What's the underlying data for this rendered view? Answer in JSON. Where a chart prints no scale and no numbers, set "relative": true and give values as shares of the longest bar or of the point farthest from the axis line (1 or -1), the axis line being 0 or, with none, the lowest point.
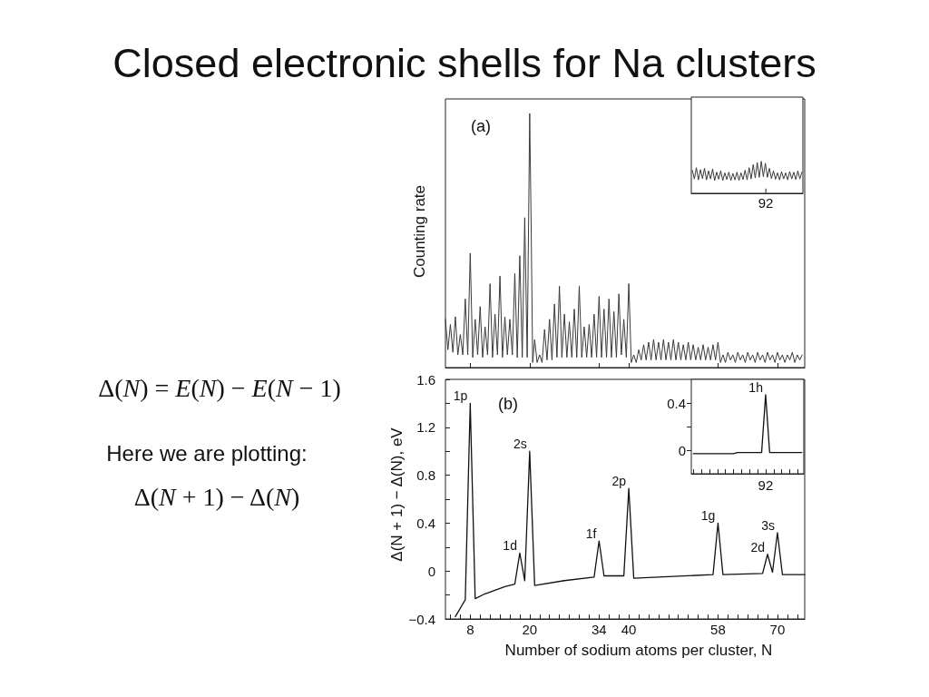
{
  "chart_data": [
    {
      "type": "line",
      "title": "Closed electronic shells for Na clusters",
      "ylabel": "Counting rate",
      "annotations": [
        "(a)"
      ],
      "relative": true,
      "tick_labels": false,
      "xlim": [
        3,
        75.5
      ],
      "xticks": [
        8,
        20,
        34,
        40,
        58,
        70
      ],
      "color": "#3a3a3a",
      "x": [
        3,
        3.5,
        4,
        4.5,
        5,
        5.5,
        6,
        6.5,
        7,
        7.5,
        8,
        8.5,
        9,
        9.5,
        10,
        10.5,
        11,
        11.5,
        12,
        12.5,
        13,
        13.5,
        14,
        14.5,
        15,
        15.5,
        16,
        16.5,
        17,
        17.5,
        18,
        18.5,
        19,
        19.5,
        20,
        20.3,
        20.6,
        21,
        21.5,
        22,
        22.5,
        23,
        23.5,
        24,
        24.5,
        25,
        25.5,
        26,
        26.5,
        27,
        27.5,
        28,
        28.5,
        29,
        29.5,
        30,
        30.5,
        31,
        31.5,
        32,
        32.5,
        33,
        33.5,
        34,
        34.5,
        35,
        35.5,
        36,
        36.5,
        37,
        37.5,
        38,
        38.5,
        39,
        39.5,
        40,
        40.5,
        41,
        41.5,
        42,
        42.5,
        43,
        43.5,
        44,
        44.5,
        45,
        45.5,
        46,
        46.5,
        47,
        47.5,
        48,
        48.5,
        49,
        49.5,
        50,
        50.5,
        51,
        51.5,
        52,
        52.5,
        53,
        53.5,
        54,
        54.5,
        55,
        55.5,
        56,
        56.5,
        57,
        57.5,
        58,
        58.5,
        59,
        59.5,
        60,
        60.5,
        61,
        61.5,
        62,
        62.5,
        63,
        63.5,
        64,
        64.5,
        65,
        65.5,
        66,
        66.5,
        67,
        67.5,
        68,
        68.5,
        69,
        69.5,
        70,
        70.5,
        71,
        71.5,
        72,
        72.5,
        73,
        73.5,
        74,
        74.5,
        75
      ],
      "values": [
        0.19,
        0.07,
        0.17,
        0.06,
        0.2,
        0.05,
        0.13,
        0.05,
        0.27,
        0.05,
        0.45,
        0.04,
        0.19,
        0.05,
        0.24,
        0.04,
        0.16,
        0.05,
        0.33,
        0.04,
        0.21,
        0.05,
        0.36,
        0.04,
        0.2,
        0.05,
        0.19,
        0.05,
        0.37,
        0.04,
        0.44,
        0.04,
        0.59,
        0.04,
        1.0,
        0.55,
        0.02,
        0.11,
        0.02,
        0.05,
        0.02,
        0.15,
        0.03,
        0.19,
        0.03,
        0.25,
        0.04,
        0.32,
        0.04,
        0.21,
        0.04,
        0.18,
        0.04,
        0.23,
        0.04,
        0.32,
        0.04,
        0.16,
        0.04,
        0.17,
        0.04,
        0.21,
        0.04,
        0.28,
        0.04,
        0.23,
        0.04,
        0.27,
        0.04,
        0.22,
        0.04,
        0.29,
        0.05,
        0.19,
        0.04,
        0.33,
        0.02,
        0.05,
        0.02,
        0.07,
        0.03,
        0.09,
        0.03,
        0.1,
        0.03,
        0.11,
        0.03,
        0.1,
        0.03,
        0.11,
        0.03,
        0.1,
        0.03,
        0.11,
        0.03,
        0.1,
        0.03,
        0.09,
        0.03,
        0.1,
        0.03,
        0.09,
        0.03,
        0.08,
        0.03,
        0.09,
        0.03,
        0.08,
        0.03,
        0.09,
        0.03,
        0.1,
        0.02,
        0.05,
        0.02,
        0.06,
        0.03,
        0.05,
        0.02,
        0.06,
        0.03,
        0.05,
        0.02,
        0.06,
        0.03,
        0.05,
        0.02,
        0.06,
        0.03,
        0.05,
        0.02,
        0.06,
        0.03,
        0.05,
        0.02,
        0.06,
        0.03,
        0.05,
        0.02,
        0.05,
        0.03,
        0.06,
        0.02,
        0.05,
        0.03,
        0.05
      ]
    },
    {
      "type": "line",
      "relative": true,
      "annotations": [
        "92"
      ],
      "color": "#3a3a3a",
      "categories": [
        null,
        null,
        null,
        null,
        null,
        null,
        null,
        null,
        null,
        null,
        null,
        null,
        null,
        null,
        null,
        null,
        null,
        null,
        null,
        null,
        null,
        null,
        null,
        null,
        null,
        null,
        null,
        null,
        null,
        null,
        null,
        null,
        null,
        null,
        null,
        null,
        null,
        null,
        null,
        null,
        null,
        null,
        null,
        null,
        null,
        null,
        null,
        null,
        null,
        null,
        null,
        null,
        null,
        null,
        null
      ],
      "values": [
        0.72,
        0.45,
        0.8,
        0.42,
        0.74,
        0.46,
        0.78,
        0.42,
        0.7,
        0.45,
        0.76,
        0.4,
        0.66,
        0.44,
        0.7,
        0.4,
        0.64,
        0.43,
        0.66,
        0.4,
        0.62,
        0.42,
        0.66,
        0.4,
        0.64,
        0.43,
        0.72,
        0.42,
        0.8,
        0.45,
        0.9,
        0.48,
        0.96,
        0.5,
        1.0,
        0.52,
        0.94,
        0.5,
        0.78,
        0.46,
        0.7,
        0.44,
        0.64,
        0.42,
        0.68,
        0.45,
        0.64,
        0.42,
        0.68,
        0.45,
        0.66,
        0.43,
        0.7,
        0.45,
        0.66
      ]
    },
    {
      "type": "line",
      "xlabel": "Number of sodium atoms per cluster, N",
      "ylabel": "Δ(N + 1) − Δ(N), eV",
      "annotations": [
        "Δ(N) = E(N) − E(N − 1)",
        "Here we are plotting:",
        "Δ(N + 1) − Δ(N)",
        "(b)",
        {
          "text": "1p",
          "x": 8,
          "y": 1.4
        },
        {
          "text": "1d",
          "x": 18,
          "y": 0.15
        },
        {
          "text": "2s",
          "x": 20,
          "y": 1.0
        },
        {
          "text": "1f",
          "x": 34,
          "y": 0.25
        },
        {
          "text": "2p",
          "x": 40,
          "y": 0.69
        },
        {
          "text": "1g",
          "x": 58,
          "y": 0.4
        },
        {
          "text": "2d",
          "x": 68,
          "y": 0.14
        },
        {
          "text": "3s",
          "x": 70,
          "y": 0.32
        }
      ],
      "xlim": [
        3,
        75.5
      ],
      "xticks": [
        {
          "value": 4,
          "label": null
        },
        {
          "value": 6,
          "label": null
        },
        8,
        {
          "value": 10,
          "label": null
        },
        {
          "value": 12,
          "label": null
        },
        {
          "value": 14,
          "label": null
        },
        {
          "value": 16,
          "label": null
        },
        {
          "value": 18,
          "label": null
        },
        20,
        {
          "value": 22,
          "label": null
        },
        {
          "value": 24,
          "label": null
        },
        {
          "value": 26,
          "label": null
        },
        {
          "value": 28,
          "label": null
        },
        {
          "value": 30,
          "label": null
        },
        {
          "value": 32,
          "label": null
        },
        34,
        {
          "value": 36,
          "label": null
        },
        {
          "value": 38,
          "label": null
        },
        40,
        {
          "value": 42,
          "label": null
        },
        {
          "value": 44,
          "label": null
        },
        {
          "value": 46,
          "label": null
        },
        {
          "value": 48,
          "label": null
        },
        {
          "value": 50,
          "label": null
        },
        {
          "value": 52,
          "label": null
        },
        {
          "value": 54,
          "label": null
        },
        {
          "value": 56,
          "label": null
        },
        58,
        {
          "value": 60,
          "label": null
        },
        {
          "value": 62,
          "label": null
        },
        {
          "value": 64,
          "label": null
        },
        {
          "value": 66,
          "label": null
        },
        {
          "value": 68,
          "label": null
        },
        70,
        {
          "value": 72,
          "label": null
        },
        {
          "value": 74,
          "label": null
        }
      ],
      "ylim": [
        -0.4,
        1.6
      ],
      "yticks": [
        {
          "value": -0.4,
          "label": "−0.4"
        },
        {
          "value": -0.2,
          "label": null
        },
        0,
        {
          "value": 0.2,
          "label": null
        },
        0.4,
        {
          "value": 0.6,
          "label": null
        },
        0.8,
        {
          "value": 1.0,
          "label": null
        },
        1.2,
        {
          "value": 1.4,
          "label": null
        },
        1.6
      ],
      "color": "#111111",
      "x": [
        5,
        7,
        8,
        9,
        11,
        13,
        15,
        17,
        18,
        19,
        20,
        21,
        27,
        33,
        34,
        35,
        39,
        40,
        41,
        57,
        58,
        59,
        67,
        68,
        69,
        70,
        71,
        75.5
      ],
      "values": [
        -0.38,
        -0.24,
        1.4,
        -0.23,
        -0.19,
        -0.16,
        -0.13,
        -0.11,
        0.15,
        -0.08,
        1.0,
        -0.12,
        -0.08,
        -0.05,
        0.25,
        -0.04,
        -0.04,
        0.69,
        -0.06,
        -0.03,
        0.4,
        -0.03,
        -0.02,
        0.14,
        -0.01,
        0.32,
        -0.03,
        -0.03
      ]
    },
    {
      "type": "line",
      "annotations": [
        {
          "text": "1h",
          "x": "92",
          "y": 0.47
        }
      ],
      "categories": [
        null,
        null,
        null,
        null,
        null,
        null,
        null,
        null,
        null,
        null,
        null,
        null,
        null,
        null,
        null,
        null,
        null,
        null,
        "92",
        null,
        null,
        null,
        null,
        null,
        null,
        null,
        null,
        null
      ],
      "ylim": [
        -0.2,
        0.6
      ],
      "yticks": [
        0,
        {
          "value": 0.2,
          "label": null
        },
        0.4
      ],
      "color": "#111111",
      "values": [
        -0.03,
        -0.03,
        -0.03,
        -0.03,
        -0.03,
        -0.03,
        -0.03,
        -0.03,
        -0.03,
        -0.03,
        -0.03,
        -0.02,
        -0.02,
        -0.02,
        -0.02,
        -0.02,
        -0.02,
        -0.02,
        0.47,
        -0.02,
        -0.02,
        -0.02,
        -0.02,
        -0.02,
        -0.02,
        -0.02,
        -0.02,
        -0.02
      ]
    }
  ]
}
